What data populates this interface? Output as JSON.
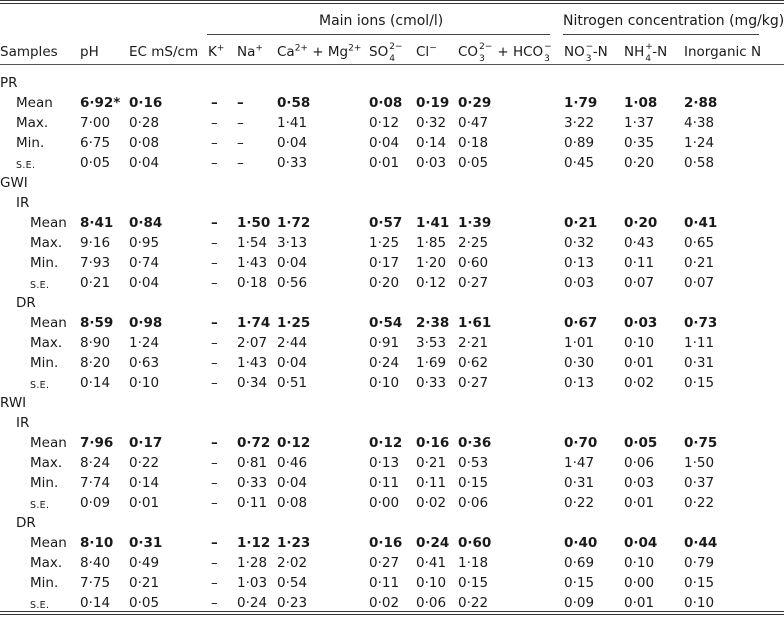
{
  "table": {
    "group_headers": {
      "main_ions": "Main ions (cmol/l)",
      "nitrogen": "Nitrogen concentration (mg/kg)"
    },
    "columns": {
      "samples": "Samples",
      "ph": "pH",
      "ec": "EC mS/cm",
      "k": "K",
      "k_sup": "+",
      "na": "Na",
      "na_sup": "+",
      "ca": "Ca",
      "ca_sup": "2+",
      "ca_plus": " + Mg",
      "mg_sup": "2+",
      "so": "SO",
      "so_sup": "2−",
      "so_sub": "4",
      "cl": "Cl",
      "cl_sup": "−",
      "co": "CO",
      "co_sup": "2−",
      "co_sub": "3",
      "hco": " + HCO",
      "hco_sup": "−",
      "hco_sub": "3",
      "no": "NO",
      "no_sup": "−",
      "no_sub": "3",
      "no_suffix": "-N",
      "nh": "NH",
      "nh_sup": "+",
      "nh_sub": "4",
      "nh_suffix": "-N",
      "inorganic": "Inorganic N"
    },
    "rows": [
      {
        "type": "group",
        "label": "PR",
        "indent": 0
      },
      {
        "type": "data",
        "label": "Mean",
        "indent": 1,
        "bold": true,
        "values": [
          "6·92*",
          "0·16",
          "–",
          "–",
          "0·58",
          "0·08",
          "0·19",
          "0·29",
          "1·79",
          "1·08",
          "2·88"
        ]
      },
      {
        "type": "data",
        "label": "Max.",
        "indent": 1,
        "bold": false,
        "values": [
          "7·00",
          "0·28",
          "–",
          "–",
          "1·41",
          "0·12",
          "0·32",
          "0·47",
          "3·22",
          "1·37",
          "4·38"
        ]
      },
      {
        "type": "data",
        "label": "Min.",
        "indent": 1,
        "bold": false,
        "values": [
          "6·75",
          "0·08",
          "–",
          "–",
          "0·04",
          "0·04",
          "0·14",
          "0·18",
          "0·89",
          "0·35",
          "1·24"
        ]
      },
      {
        "type": "data",
        "label": "s.e.",
        "indent": 1,
        "bold": false,
        "smallcaps": true,
        "values": [
          "0·05",
          "0·04",
          "–",
          "–",
          "0·33",
          "0·01",
          "0·03",
          "0·05",
          "0·45",
          "0·20",
          "0·58"
        ]
      },
      {
        "type": "group",
        "label": "GWI",
        "indent": 0
      },
      {
        "type": "group",
        "label": "IR",
        "indent": 1
      },
      {
        "type": "data",
        "label": "Mean",
        "indent": 2,
        "bold": true,
        "values": [
          "8·41",
          "0·84",
          "–",
          "1·50",
          "1·72",
          "0·57",
          "1·41",
          "1·39",
          "0·21",
          "0·20",
          "0·41"
        ]
      },
      {
        "type": "data",
        "label": "Max.",
        "indent": 2,
        "bold": false,
        "values": [
          "9·16",
          "0·95",
          "–",
          "1·54",
          "3·13",
          "1·25",
          "1·85",
          "2·25",
          "0·32",
          "0·43",
          "0·65"
        ]
      },
      {
        "type": "data",
        "label": "Min.",
        "indent": 2,
        "bold": false,
        "values": [
          "7·93",
          "0·74",
          "–",
          "1·43",
          "0·04",
          "0·17",
          "1·20",
          "0·60",
          "0·13",
          "0·11",
          "0·21"
        ]
      },
      {
        "type": "data",
        "label": "s.e.",
        "indent": 2,
        "bold": false,
        "smallcaps": true,
        "values": [
          "0·21",
          "0·04",
          "–",
          "0·18",
          "0·56",
          "0·20",
          "0·12",
          "0·27",
          "0·03",
          "0·07",
          "0·07"
        ]
      },
      {
        "type": "group",
        "label": "DR",
        "indent": 1
      },
      {
        "type": "data",
        "label": "Mean",
        "indent": 2,
        "bold": true,
        "values": [
          "8·59",
          "0·98",
          "–",
          "1·74",
          "1·25",
          "0·54",
          "2·38",
          "1·61",
          "0·67",
          "0·03",
          "0·73"
        ]
      },
      {
        "type": "data",
        "label": "Max.",
        "indent": 2,
        "bold": false,
        "values": [
          "8·90",
          "1·24",
          "–",
          "2·07",
          "2·44",
          "0·91",
          "3·53",
          "2·21",
          "1·01",
          "0·10",
          "1·11"
        ]
      },
      {
        "type": "data",
        "label": "Min.",
        "indent": 2,
        "bold": false,
        "values": [
          "8·20",
          "0·63",
          "–",
          "1·43",
          "0·04",
          "0·24",
          "1·69",
          "0·62",
          "0·30",
          "0·01",
          "0·31"
        ]
      },
      {
        "type": "data",
        "label": "s.e.",
        "indent": 2,
        "bold": false,
        "smallcaps": true,
        "values": [
          "0·14",
          "0·10",
          "–",
          "0·34",
          "0·51",
          "0·10",
          "0·33",
          "0·27",
          "0·13",
          "0·02",
          "0·15"
        ]
      },
      {
        "type": "group",
        "label": "RWI",
        "indent": 0
      },
      {
        "type": "group",
        "label": "IR",
        "indent": 1
      },
      {
        "type": "data",
        "label": "Mean",
        "indent": 2,
        "bold": true,
        "values": [
          "7·96",
          "0·17",
          "–",
          "0·72",
          "0·12",
          "0·12",
          "0·16",
          "0·36",
          "0·70",
          "0·05",
          "0·75"
        ]
      },
      {
        "type": "data",
        "label": "Max.",
        "indent": 2,
        "bold": false,
        "values": [
          "8·24",
          "0·22",
          "–",
          "0·81",
          "0·46",
          "0·13",
          "0·21",
          "0·53",
          "1·47",
          "0·06",
          "1·50"
        ]
      },
      {
        "type": "data",
        "label": "Min.",
        "indent": 2,
        "bold": false,
        "values": [
          "7·74",
          "0·14",
          "–",
          "0·33",
          "0·04",
          "0·11",
          "0·11",
          "0·15",
          "0·31",
          "0·03",
          "0·37"
        ]
      },
      {
        "type": "data",
        "label": "s.e.",
        "indent": 2,
        "bold": false,
        "smallcaps": true,
        "values": [
          "0·09",
          "0·01",
          "–",
          "0·11",
          "0·08",
          "0·00",
          "0·02",
          "0·06",
          "0·22",
          "0·01",
          "0·22"
        ]
      },
      {
        "type": "group",
        "label": "DR",
        "indent": 1
      },
      {
        "type": "data",
        "label": "Mean",
        "indent": 2,
        "bold": true,
        "values": [
          "8·10",
          "0·31",
          "–",
          "1·12",
          "1·23",
          "0·16",
          "0·24",
          "0·60",
          "0·40",
          "0·04",
          "0·44"
        ]
      },
      {
        "type": "data",
        "label": "Max.",
        "indent": 2,
        "bold": false,
        "values": [
          "8·40",
          "0·49",
          "–",
          "1·28",
          "2·02",
          "0·27",
          "0·41",
          "1·18",
          "0·69",
          "0·10",
          "0·79"
        ]
      },
      {
        "type": "data",
        "label": "Min.",
        "indent": 2,
        "bold": false,
        "values": [
          "7·75",
          "0·21",
          "–",
          "1·03",
          "0·54",
          "0·11",
          "0·10",
          "0·15",
          "0·15",
          "0·00",
          "0·15"
        ]
      },
      {
        "type": "data",
        "label": "s.e.",
        "indent": 2,
        "bold": false,
        "smallcaps": true,
        "values": [
          "0·14",
          "0·05",
          "–",
          "0·24",
          "0·23",
          "0·02",
          "0·06",
          "0·22",
          "0·09",
          "0·01",
          "0·10"
        ]
      }
    ]
  }
}
